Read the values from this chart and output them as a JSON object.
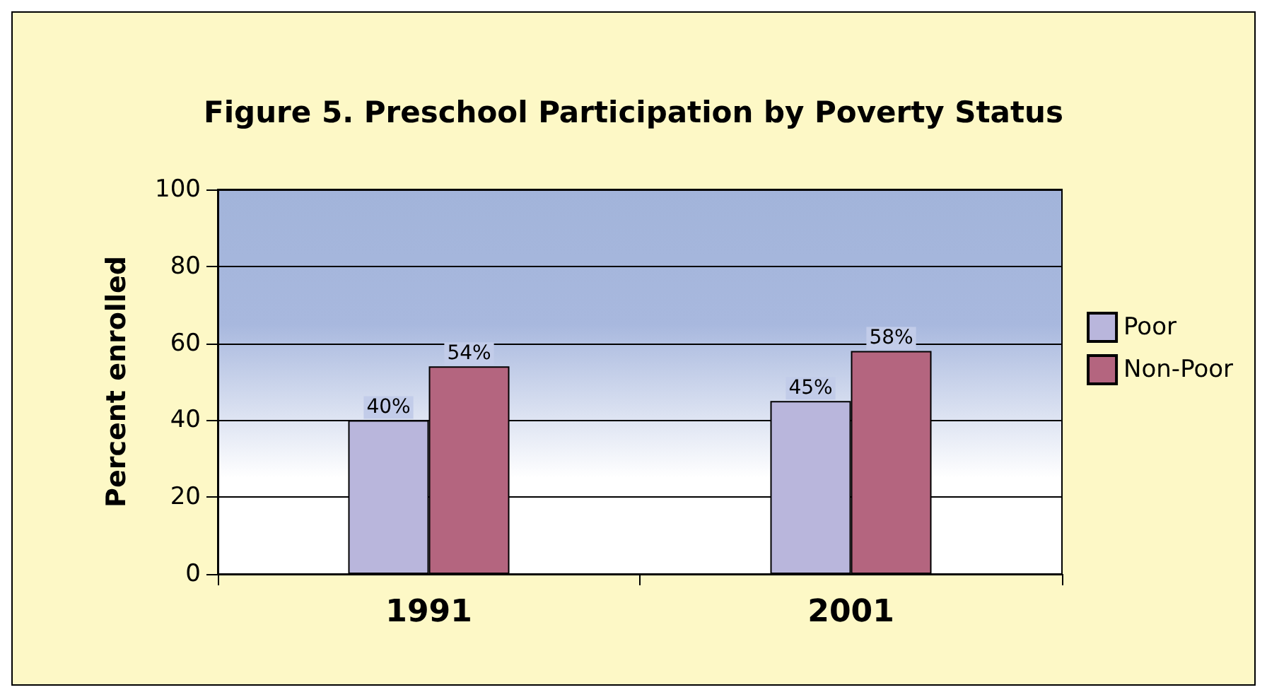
{
  "chart_data": {
    "type": "bar",
    "title": "Figure 5. Preschool Participation by Poverty Status",
    "ylabel": "Percent enrolled",
    "categories": [
      "1991",
      "2001"
    ],
    "series": [
      {
        "name": "Poor",
        "color": "#b9b6dc",
        "values": [
          40,
          45
        ],
        "value_labels": [
          "40%",
          "45%"
        ]
      },
      {
        "name": "Non-Poor",
        "color": "#b4657f",
        "values": [
          54,
          58
        ],
        "value_labels": [
          "54%",
          "58%"
        ]
      }
    ],
    "ylim": [
      0,
      100
    ],
    "yticks": [
      0,
      20,
      40,
      60,
      80,
      100
    ],
    "grid": "y",
    "legend": "right"
  }
}
